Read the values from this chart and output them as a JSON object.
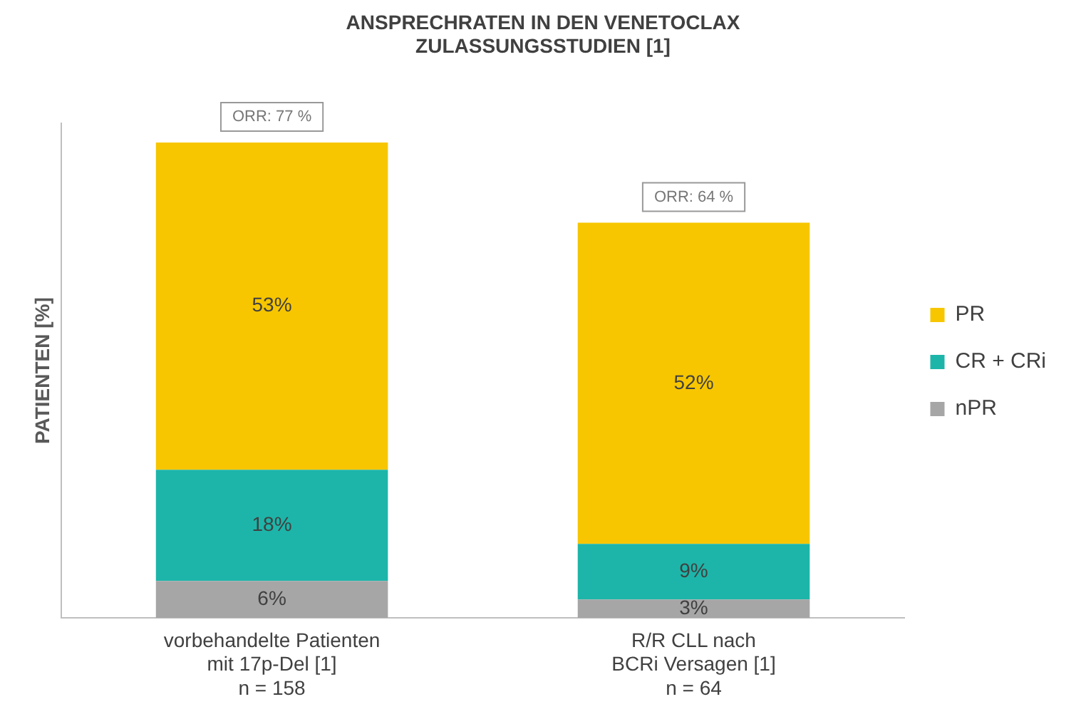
{
  "chart_data": {
    "type": "bar",
    "title": "ANSPRECHRATEN IN DEN VENETOCLAX\nZULASSUNGSSTUDIEN [1]",
    "ylabel": "PATIENTEN [%]",
    "categories": [
      "vorbehandelte Patienten\nmit 17p-Del [1]\nn = 158",
      "R/R CLL nach\nBCRi Versagen [1]\nn = 64"
    ],
    "series": [
      {
        "name": "nPR",
        "color": "#a6a6a6",
        "values": [
          6,
          3
        ],
        "value_labels": [
          "6%",
          "3%"
        ]
      },
      {
        "name": "CR + CRi",
        "color": "#1db5a9",
        "values": [
          18,
          9
        ],
        "value_labels": [
          "18%",
          "9%"
        ]
      },
      {
        "name": "PR",
        "color": "#f7c600",
        "values": [
          53,
          52
        ],
        "value_labels": [
          "53%",
          "52%"
        ]
      }
    ],
    "stacked": true,
    "totals": [
      "ORR: 77 %",
      "ORR: 64 %"
    ],
    "legend": "right",
    "grid": false,
    "tick_labels": "x"
  }
}
